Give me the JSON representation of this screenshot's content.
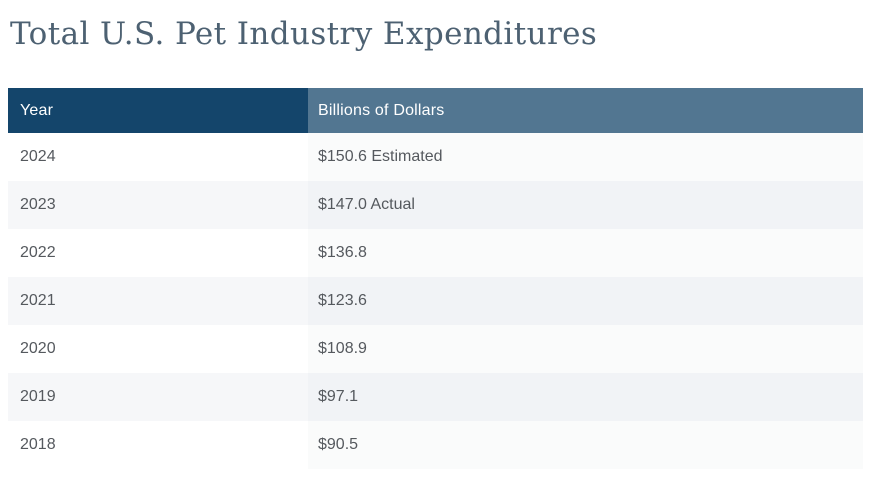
{
  "title": "Total U.S. Pet Industry Expenditures",
  "table": {
    "columns": [
      "Year",
      "Billions of Dollars"
    ],
    "rows": [
      {
        "year": "2024",
        "value": "$150.6 Estimated"
      },
      {
        "year": "2023",
        "value": "$147.0 Actual"
      },
      {
        "year": "2022",
        "value": "$136.8"
      },
      {
        "year": "2021",
        "value": "$123.6"
      },
      {
        "year": "2020",
        "value": "$108.9"
      },
      {
        "year": "2019",
        "value": "$97.1"
      },
      {
        "year": "2018",
        "value": "$90.5"
      }
    ]
  },
  "chart_data": {
    "type": "table",
    "title": "Total U.S. Pet Industry Expenditures",
    "columns": [
      "Year",
      "Billions of Dollars"
    ],
    "categories": [
      "2024",
      "2023",
      "2022",
      "2021",
      "2020",
      "2019",
      "2018"
    ],
    "values": [
      150.6,
      147.0,
      136.8,
      123.6,
      108.9,
      97.1,
      90.5
    ],
    "annotations": {
      "2024": "Estimated",
      "2023": "Actual"
    },
    "unit": "billions of dollars (USD)"
  },
  "colors": {
    "title-color": "#4d6172",
    "header-year-bg": "#14456b",
    "header-value-bg": "#527691",
    "header-text": "#ffffff",
    "row-text": "#55595e",
    "stripe-year-bg": "#f6f7f9",
    "stripe-value-bg": "#f1f3f6",
    "plain-year-bg": "#ffffff",
    "plain-value-bg": "#fafbfb"
  }
}
